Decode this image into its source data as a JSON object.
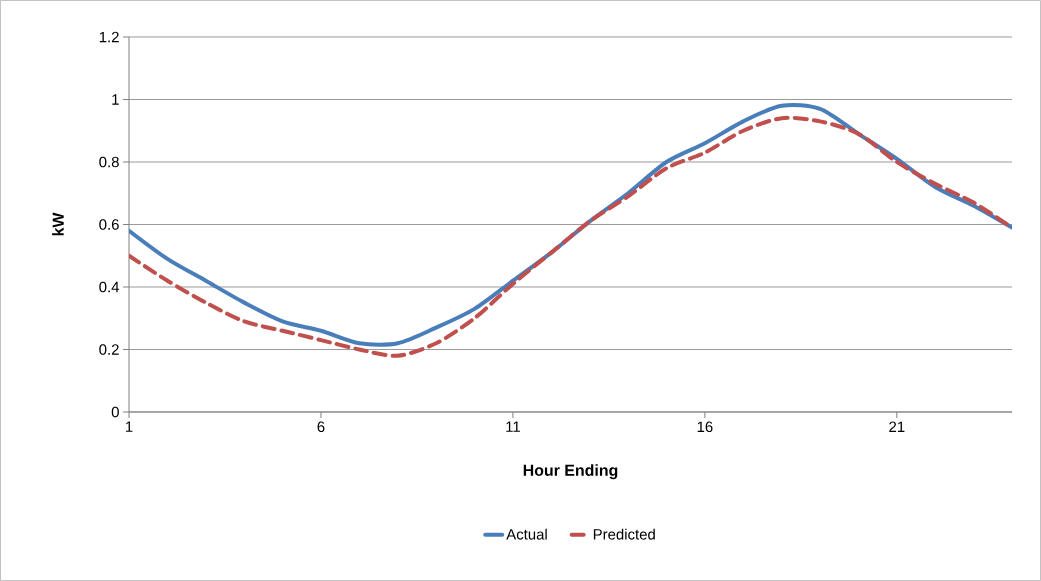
{
  "chart_data": {
    "type": "line",
    "xlabel": "Hour Ending",
    "ylabel": "kW",
    "x": [
      1,
      2,
      3,
      4,
      5,
      6,
      7,
      8,
      9,
      10,
      11,
      12,
      13,
      14,
      15,
      16,
      17,
      18,
      19,
      20,
      21,
      22,
      23,
      24
    ],
    "xlim": [
      1,
      24
    ],
    "xticks": [
      1,
      6,
      11,
      16,
      21
    ],
    "ylim": [
      0,
      1.2
    ],
    "yticks": [
      0,
      0.2,
      0.4,
      0.6,
      0.8,
      1,
      1.2
    ],
    "grid": "y",
    "legend": "bottom",
    "series": [
      {
        "name": "Actual",
        "color": "#4a7ebb",
        "line_style": "solid",
        "values": [
          0.58,
          0.49,
          0.42,
          0.35,
          0.29,
          0.26,
          0.22,
          0.22,
          0.27,
          0.33,
          0.42,
          0.51,
          0.61,
          0.7,
          0.8,
          0.86,
          0.93,
          0.98,
          0.97,
          0.89,
          0.81,
          0.72,
          0.66,
          0.59
        ]
      },
      {
        "name": "Predicted",
        "color": "#c0504d",
        "line_style": "dashed",
        "values": [
          0.5,
          0.42,
          0.35,
          0.29,
          0.26,
          0.23,
          0.2,
          0.18,
          0.22,
          0.3,
          0.41,
          0.51,
          0.61,
          0.69,
          0.78,
          0.83,
          0.9,
          0.94,
          0.93,
          0.89,
          0.8,
          0.73,
          0.67,
          0.59
        ]
      }
    ]
  }
}
